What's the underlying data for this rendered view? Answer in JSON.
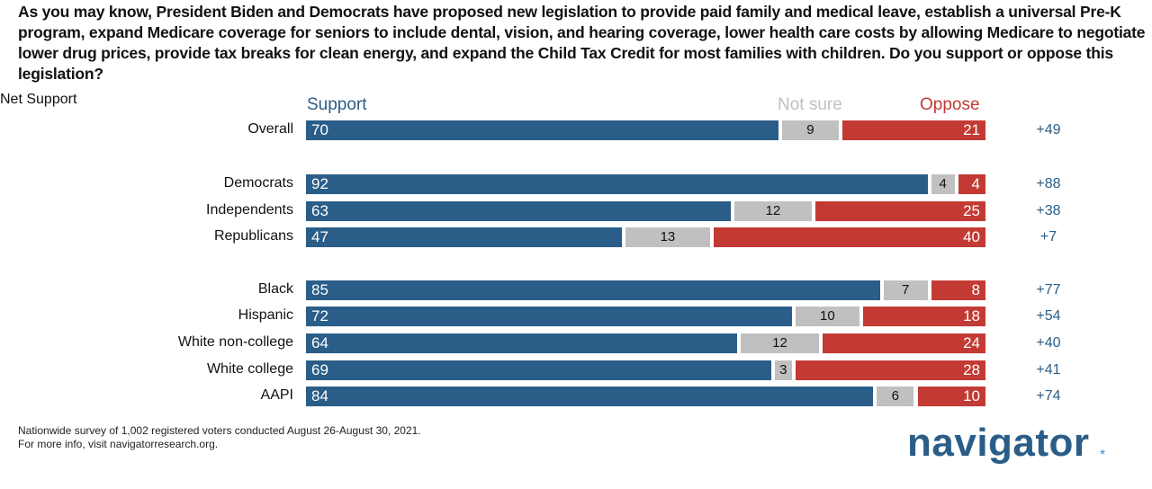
{
  "chart_data": {
    "type": "bar",
    "orientation": "horizontal-stacked",
    "title": "As you may know, President Biden and Democrats have proposed new legislation to provide paid family and medical leave, establish a universal Pre-K program, expand Medicare coverage for seniors to include dental, vision, and hearing coverage, lower health care costs by allowing Medicare to negotiate lower drug prices, provide tax breaks for clean energy, and expand the Child Tax Credit for most families with children. Do you support or oppose this legislation?",
    "legend": {
      "support": "Support",
      "not_sure": "Not sure",
      "oppose": "Oppose",
      "net": "Net Support"
    },
    "colors": {
      "support": "#2a5d87",
      "not_sure": "#c0c0c0",
      "oppose": "#c33a34"
    },
    "rows": [
      {
        "label": "Overall",
        "support": 70,
        "not_sure": 9,
        "oppose": 21,
        "net": "+49"
      },
      {
        "label": "Democrats",
        "support": 92,
        "not_sure": 4,
        "oppose": 4,
        "net": "+88"
      },
      {
        "label": "Independents",
        "support": 63,
        "not_sure": 12,
        "oppose": 25,
        "net": "+38"
      },
      {
        "label": "Republicans",
        "support": 47,
        "not_sure": 13,
        "oppose": 40,
        "net": "+7"
      },
      {
        "label": "Black",
        "support": 85,
        "not_sure": 7,
        "oppose": 8,
        "net": "+77"
      },
      {
        "label": "Hispanic",
        "support": 72,
        "not_sure": 10,
        "oppose": 18,
        "net": "+54"
      },
      {
        "label": "White non-college",
        "support": 64,
        "not_sure": 12,
        "oppose": 24,
        "net": "+40"
      },
      {
        "label": "White college",
        "support": 69,
        "not_sure": 3,
        "oppose": 28,
        "net": "+41"
      },
      {
        "label": "AAPI",
        "support": 84,
        "not_sure": 6,
        "oppose": 10,
        "net": "+74"
      }
    ]
  },
  "footer": {
    "line1": "Nationwide survey of 1,002 registered voters conducted August 26-August 30, 2021.",
    "line2": "For more info, visit navigatorresearch.org."
  },
  "logo": {
    "text": "navigator",
    "mark": "*"
  }
}
